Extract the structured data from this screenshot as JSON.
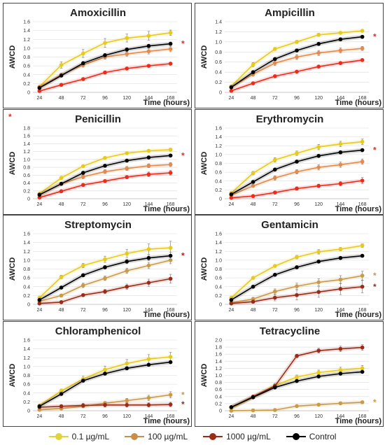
{
  "figure": {
    "x_axis_label": "Time (hours)",
    "y_axis_label": "AWCD"
  },
  "legend": [
    {
      "label": "0.1 µg/mL",
      "color": "#e0d43a"
    },
    {
      "label": "100 µg/mL",
      "color": "#c98f4a"
    },
    {
      "label": "1000 µg/mL",
      "color": "#9b2a16"
    },
    {
      "label": "Control",
      "color": "#000000"
    }
  ],
  "chart_data": [
    {
      "type": "line",
      "title": "Amoxicillin",
      "xlabel": "Time (hours)",
      "ylabel": "AWCD",
      "x": [
        24,
        48,
        72,
        96,
        120,
        144,
        168
      ],
      "ylim": [
        0,
        1.6
      ],
      "yticks": [
        "0",
        "0.2",
        "0.4",
        "0.6",
        "0.8",
        "1.0",
        "1.2",
        "1.4",
        "1.6"
      ],
      "series": [
        {
          "name": "0.1 µg/mL",
          "color": "#e8cb1a",
          "values": [
            0.13,
            0.62,
            0.88,
            1.12,
            1.23,
            1.28,
            1.35
          ],
          "errors": [
            0.03,
            0.07,
            0.09,
            0.1,
            0.09,
            0.1,
            0.06
          ]
        },
        {
          "name": "100 µg/mL",
          "color": "#e58a4a",
          "values": [
            0.12,
            0.4,
            0.62,
            0.8,
            0.87,
            0.93,
            0.98
          ],
          "errors": [
            0.02,
            0.04,
            0.05,
            0.05,
            0.05,
            0.06,
            0.06
          ]
        },
        {
          "name": "1000 µg/mL",
          "color": "#ee2a1a",
          "values": [
            0.03,
            0.17,
            0.3,
            0.45,
            0.54,
            0.6,
            0.65
          ],
          "errors": [
            0.01,
            0.02,
            0.02,
            0.02,
            0.02,
            0.02,
            0.02
          ]
        },
        {
          "name": "Control",
          "color": "#000000",
          "values": [
            0.1,
            0.38,
            0.66,
            0.84,
            0.97,
            1.05,
            1.1
          ],
          "errors": [
            0.02,
            0.03,
            0.04,
            0.04,
            0.04,
            0.04,
            0.04
          ]
        }
      ],
      "annotations": [
        {
          "text": "*",
          "color": "#ee2a1a",
          "at": "right-of-series-3"
        }
      ]
    },
    {
      "type": "line",
      "title": "Ampicillin",
      "xlabel": "Time (hours)",
      "ylabel": "AWCD",
      "x": [
        24,
        48,
        72,
        96,
        120,
        144,
        168
      ],
      "ylim": [
        0,
        1.4
      ],
      "yticks": [
        "0",
        "0.2",
        "0.4",
        "0.6",
        "0.8",
        "1.0",
        "1.2",
        "1.4"
      ],
      "series": [
        {
          "name": "0.1 µg/mL",
          "color": "#e8cb1a",
          "values": [
            0.12,
            0.55,
            0.86,
            1.0,
            1.14,
            1.18,
            1.22
          ],
          "errors": [
            0.02,
            0.04,
            0.03,
            0.03,
            0.03,
            0.02,
            0.02
          ]
        },
        {
          "name": "100 µg/mL",
          "color": "#e58a4a",
          "values": [
            0.1,
            0.36,
            0.58,
            0.7,
            0.78,
            0.83,
            0.87
          ],
          "errors": [
            0.02,
            0.04,
            0.05,
            0.05,
            0.05,
            0.05,
            0.04
          ]
        },
        {
          "name": "1000 µg/mL",
          "color": "#ee2a1a",
          "values": [
            0.03,
            0.18,
            0.32,
            0.41,
            0.51,
            0.58,
            0.64
          ],
          "errors": [
            0.01,
            0.02,
            0.02,
            0.02,
            0.02,
            0.02,
            0.02
          ]
        },
        {
          "name": "Control",
          "color": "#000000",
          "values": [
            0.1,
            0.4,
            0.66,
            0.83,
            0.96,
            1.05,
            1.1
          ],
          "errors": [
            0.02,
            0.03,
            0.03,
            0.03,
            0.03,
            0.03,
            0.03
          ]
        }
      ],
      "annotations": [
        {
          "text": "*",
          "color": "#ee2a1a",
          "at": "right-of-series-3"
        }
      ]
    },
    {
      "type": "line",
      "title": "Penicillin",
      "xlabel": "Time (hours)",
      "ylabel": "AWCD",
      "x": [
        24,
        48,
        72,
        96,
        120,
        144,
        168
      ],
      "ylim": [
        0,
        1.8
      ],
      "yticks": [
        "0",
        "0.2",
        "0.4",
        "0.6",
        "0.8",
        "1.0",
        "1.2",
        "1.4",
        "1.6",
        "1.8"
      ],
      "series": [
        {
          "name": "0.1 µg/mL",
          "color": "#e8cb1a",
          "values": [
            0.13,
            0.53,
            0.83,
            1.04,
            1.16,
            1.22,
            1.25
          ],
          "errors": [
            0.02,
            0.04,
            0.03,
            0.03,
            0.03,
            0.03,
            0.03
          ]
        },
        {
          "name": "100 µg/mL",
          "color": "#e58a4a",
          "values": [
            0.1,
            0.38,
            0.56,
            0.69,
            0.77,
            0.84,
            0.87
          ],
          "errors": [
            0.02,
            0.04,
            0.05,
            0.05,
            0.05,
            0.05,
            0.05
          ]
        },
        {
          "name": "1000 µg/mL",
          "color": "#ee2a1a",
          "values": [
            0.03,
            0.19,
            0.35,
            0.45,
            0.55,
            0.62,
            0.66
          ],
          "errors": [
            0.01,
            0.02,
            0.02,
            0.03,
            0.04,
            0.06,
            0.06
          ]
        },
        {
          "name": "Control",
          "color": "#000000",
          "values": [
            0.1,
            0.38,
            0.66,
            0.84,
            0.97,
            1.05,
            1.1
          ],
          "errors": [
            0.02,
            0.03,
            0.03,
            0.03,
            0.03,
            0.03,
            0.03
          ]
        }
      ],
      "annotations": [
        {
          "text": "*",
          "color": "#ee2a1a",
          "at": "right-of-series-3"
        },
        {
          "text": "*",
          "color": "#ee2a1a",
          "at": "top-left"
        }
      ]
    },
    {
      "type": "line",
      "title": "Erythromycin",
      "xlabel": "Time (hours)",
      "ylabel": "AWCD",
      "x": [
        24,
        48,
        72,
        96,
        120,
        144,
        168
      ],
      "ylim": [
        0,
        1.6
      ],
      "yticks": [
        "0",
        "0.2",
        "0.4",
        "0.6",
        "0.8",
        "1.0",
        "1.2",
        "1.4",
        "1.6"
      ],
      "series": [
        {
          "name": "0.1 µg/mL",
          "color": "#e8cb1a",
          "values": [
            0.13,
            0.58,
            0.88,
            1.03,
            1.17,
            1.24,
            1.29
          ],
          "errors": [
            0.02,
            0.04,
            0.05,
            0.05,
            0.06,
            0.06,
            0.06
          ]
        },
        {
          "name": "100 µg/mL",
          "color": "#e58a4a",
          "values": [
            0.08,
            0.29,
            0.47,
            0.61,
            0.71,
            0.77,
            0.84
          ],
          "errors": [
            0.02,
            0.03,
            0.05,
            0.05,
            0.06,
            0.06,
            0.06
          ]
        },
        {
          "name": "1000 µg/mL",
          "color": "#ee2a1a",
          "values": [
            0.02,
            0.06,
            0.14,
            0.23,
            0.29,
            0.34,
            0.41
          ],
          "errors": [
            0.01,
            0.02,
            0.03,
            0.04,
            0.04,
            0.05,
            0.07
          ]
        },
        {
          "name": "Control",
          "color": "#000000",
          "values": [
            0.1,
            0.38,
            0.66,
            0.84,
            0.97,
            1.05,
            1.1
          ],
          "errors": [
            0.02,
            0.03,
            0.03,
            0.03,
            0.03,
            0.03,
            0.03
          ]
        }
      ],
      "annotations": [
        {
          "text": "*",
          "color": "#ee2a1a",
          "at": "right-of-series-3"
        }
      ]
    },
    {
      "type": "line",
      "title": "Streptomycin",
      "xlabel": "Time (hours)",
      "ylabel": "AWCD",
      "x": [
        24,
        48,
        72,
        96,
        120,
        144,
        168
      ],
      "ylim": [
        0,
        1.6
      ],
      "yticks": [
        "0",
        "0.2",
        "0.4",
        "0.6",
        "0.8",
        "1.0",
        "1.2",
        "1.4",
        "1.6"
      ],
      "series": [
        {
          "name": "0.1 µg/mL",
          "color": "#e8cb1a",
          "values": [
            0.15,
            0.62,
            0.88,
            1.02,
            1.15,
            1.25,
            1.28
          ],
          "errors": [
            0.02,
            0.04,
            0.05,
            0.07,
            0.09,
            0.12,
            0.15
          ]
        },
        {
          "name": "100 µg/mL",
          "color": "#c99a48",
          "values": [
            0.07,
            0.2,
            0.43,
            0.59,
            0.76,
            0.88,
            1.0
          ],
          "errors": [
            0.02,
            0.03,
            0.05,
            0.05,
            0.06,
            0.07,
            0.08
          ]
        },
        {
          "name": "1000 µg/mL",
          "color": "#9b2a16",
          "values": [
            0.02,
            0.05,
            0.21,
            0.29,
            0.4,
            0.49,
            0.58
          ],
          "errors": [
            0.01,
            0.02,
            0.03,
            0.05,
            0.06,
            0.08,
            0.1
          ]
        },
        {
          "name": "Control",
          "color": "#000000",
          "values": [
            0.1,
            0.38,
            0.66,
            0.84,
            0.97,
            1.05,
            1.1
          ],
          "errors": [
            0.02,
            0.03,
            0.03,
            0.04,
            0.05,
            0.06,
            0.08
          ]
        }
      ],
      "annotations": [
        {
          "text": "*",
          "color": "#9b2a16",
          "at": "right-of-series-3"
        }
      ]
    },
    {
      "type": "line",
      "title": "Gentamicin",
      "xlabel": "Time (hours)",
      "ylabel": "AWCD",
      "x": [
        24,
        48,
        72,
        96,
        120,
        144,
        168
      ],
      "ylim": [
        0,
        1.6
      ],
      "yticks": [
        "0",
        "0.2",
        "0.4",
        "0.6",
        "0.8",
        "1.0",
        "1.2",
        "1.4",
        "1.6"
      ],
      "series": [
        {
          "name": "0.1 µg/mL",
          "color": "#e8cb1a",
          "values": [
            0.15,
            0.6,
            0.87,
            1.07,
            1.19,
            1.25,
            1.33
          ],
          "errors": [
            0.02,
            0.03,
            0.03,
            0.04,
            0.05,
            0.04,
            0.04
          ]
        },
        {
          "name": "100 µg/mL",
          "color": "#c99a48",
          "values": [
            0.04,
            0.12,
            0.29,
            0.41,
            0.5,
            0.56,
            0.65
          ],
          "errors": [
            0.01,
            0.04,
            0.06,
            0.07,
            0.08,
            0.09,
            0.1
          ]
        },
        {
          "name": "1000 µg/mL",
          "color": "#9b2a16",
          "values": [
            0.02,
            0.06,
            0.15,
            0.21,
            0.28,
            0.35,
            0.4
          ],
          "errors": [
            0.01,
            0.03,
            0.07,
            0.11,
            0.12,
            0.13,
            0.14
          ]
        },
        {
          "name": "Control",
          "color": "#000000",
          "values": [
            0.1,
            0.4,
            0.67,
            0.84,
            0.97,
            1.05,
            1.1
          ],
          "errors": [
            0.02,
            0.03,
            0.03,
            0.03,
            0.03,
            0.03,
            0.03
          ]
        }
      ],
      "annotations": [
        {
          "text": "*",
          "color": "#c99a48",
          "at": "right-of-series-1"
        },
        {
          "text": "*",
          "color": "#9b2a16",
          "at": "right-of-series-2"
        }
      ]
    },
    {
      "type": "line",
      "title": "Chloramphenicol",
      "xlabel": "Time (hours)",
      "ylabel": "AWCD",
      "x": [
        24,
        48,
        72,
        96,
        120,
        144,
        168
      ],
      "ylim": [
        0,
        1.6
      ],
      "yticks": [
        "0",
        "0.2",
        "0.4",
        "0.6",
        "0.8",
        "1.0",
        "1.2",
        "1.4",
        "1.6"
      ],
      "series": [
        {
          "name": "0.1 µg/mL",
          "color": "#e8cb1a",
          "values": [
            0.12,
            0.45,
            0.72,
            0.93,
            1.07,
            1.17,
            1.22
          ],
          "errors": [
            0.02,
            0.04,
            0.06,
            0.08,
            0.09,
            0.1,
            0.1
          ]
        },
        {
          "name": "100 µg/mL",
          "color": "#c99a48",
          "values": [
            0.02,
            0.05,
            0.1,
            0.17,
            0.23,
            0.29,
            0.36
          ],
          "errors": [
            0.01,
            0.02,
            0.03,
            0.04,
            0.05,
            0.06,
            0.07
          ]
        },
        {
          "name": "1000 µg/mL",
          "color": "#9b2a16",
          "values": [
            0.08,
            0.1,
            0.12,
            0.13,
            0.13,
            0.13,
            0.14
          ],
          "errors": [
            0.02,
            0.04,
            0.05,
            0.05,
            0.05,
            0.05,
            0.05
          ]
        },
        {
          "name": "Control",
          "color": "#000000",
          "values": [
            0.1,
            0.38,
            0.68,
            0.84,
            0.96,
            1.04,
            1.1
          ],
          "errors": [
            0.02,
            0.03,
            0.03,
            0.03,
            0.03,
            0.03,
            0.03
          ]
        }
      ],
      "annotations": [
        {
          "text": "*",
          "color": "#c99a48",
          "at": "right-of-series-1"
        },
        {
          "text": "*",
          "color": "#9b2a16",
          "at": "right-of-series-2"
        }
      ]
    },
    {
      "type": "line",
      "title": "Tetracycline",
      "xlabel": "Time (hours)",
      "ylabel": "AWCD",
      "x": [
        24,
        48,
        72,
        96,
        120,
        144,
        168
      ],
      "ylim": [
        0,
        2.0
      ],
      "yticks": [
        "0",
        "0.2",
        "0.4",
        "0.6",
        "0.8",
        "1.0",
        "1.2",
        "1.4",
        "1.6",
        "1.8",
        "2.0"
      ],
      "series": [
        {
          "name": "0.1 µg/mL",
          "color": "#e8cb1a",
          "values": [
            0.08,
            0.38,
            0.72,
            0.95,
            1.08,
            1.15,
            1.2
          ],
          "errors": [
            0.02,
            0.03,
            0.05,
            0.06,
            0.07,
            0.08,
            0.08
          ]
        },
        {
          "name": "100 µg/mL",
          "color": "#c99a48",
          "values": [
            0.0,
            0.01,
            0.02,
            0.13,
            0.17,
            0.21,
            0.24
          ],
          "errors": [
            0.0,
            0.01,
            0.01,
            0.02,
            0.02,
            0.02,
            0.02
          ]
        },
        {
          "name": "1000 µg/mL",
          "color": "#9b2a16",
          "values": [
            0.1,
            0.4,
            0.7,
            1.55,
            1.7,
            1.75,
            1.79
          ],
          "errors": [
            0.02,
            0.03,
            0.06,
            0.05,
            0.07,
            0.08,
            0.08
          ]
        },
        {
          "name": "Control",
          "color": "#000000",
          "values": [
            0.1,
            0.38,
            0.66,
            0.84,
            0.97,
            1.05,
            1.1
          ],
          "errors": [
            0.02,
            0.03,
            0.03,
            0.03,
            0.03,
            0.03,
            0.03
          ]
        }
      ],
      "annotations": [
        {
          "text": "*",
          "color": "#c99a48",
          "at": "right-of-series-1"
        }
      ]
    }
  ]
}
